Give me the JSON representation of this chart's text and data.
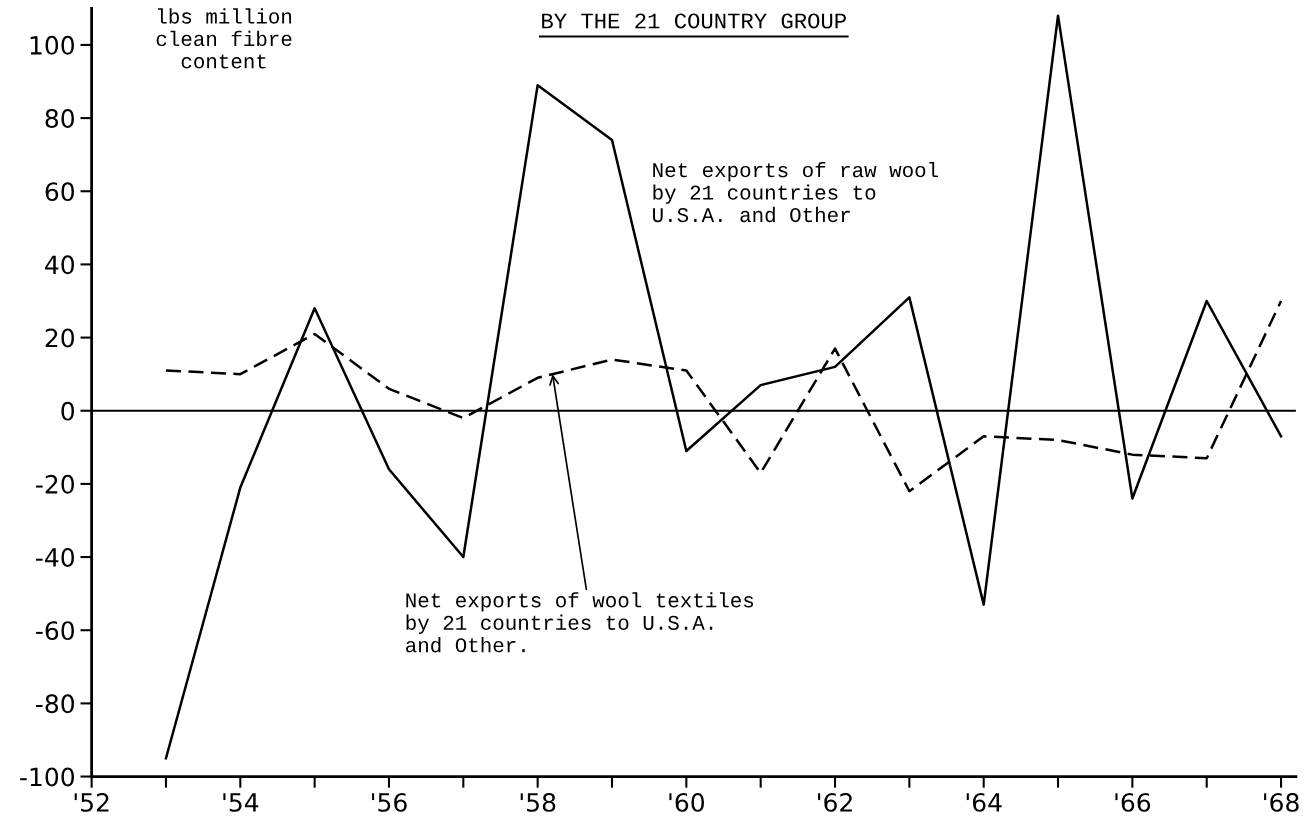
{
  "chart_data": {
    "type": "line",
    "title": "BY THE 21 COUNTRY GROUP",
    "x": [
      1953,
      1954,
      1955,
      1956,
      1957,
      1958,
      1959,
      1960,
      1961,
      1962,
      1963,
      1964,
      1965,
      1966,
      1967,
      1968
    ],
    "series": [
      {
        "name": "Net exports of raw wool\nby 21 countries to\nU.S.A. and Other",
        "color": "#000000",
        "line_style": "solid",
        "values": [
          -95,
          -21,
          28,
          -16,
          -40,
          89,
          74,
          -11,
          7,
          12,
          31,
          -53,
          108,
          -24,
          30,
          -7
        ]
      },
      {
        "name": "Net exports of wool textiles\nby 21 countries to U.S.A.\nand Other.",
        "color": "#000000",
        "line_style": "dashed",
        "values": [
          11,
          10,
          21,
          6,
          -2,
          9,
          14,
          11,
          -17,
          17,
          -22,
          -7,
          -8,
          -12,
          -13,
          30
        ]
      }
    ],
    "annotations": [
      "lbs million\nclean fibre\ncontent"
    ],
    "xlim": [
      1952,
      1968.2
    ],
    "xticks": [
      {
        "value": 1952,
        "label": "'52"
      },
      {
        "value": 1953,
        "label": null
      },
      {
        "value": 1954,
        "label": "'54"
      },
      {
        "value": 1955,
        "label": null
      },
      {
        "value": 1956,
        "label": "'56"
      },
      {
        "value": 1957,
        "label": null
      },
      {
        "value": 1958,
        "label": "'58"
      },
      {
        "value": 1959,
        "label": null
      },
      {
        "value": 1960,
        "label": "'60"
      },
      {
        "value": 1961,
        "label": null
      },
      {
        "value": 1962,
        "label": "'62"
      },
      {
        "value": 1963,
        "label": null
      },
      {
        "value": 1964,
        "label": "'64"
      },
      {
        "value": 1965,
        "label": null
      },
      {
        "value": 1966,
        "label": "'66"
      },
      {
        "value": 1967,
        "label": null
      },
      {
        "value": 1968,
        "label": "'68"
      }
    ],
    "ylim": [
      -100,
      110
    ],
    "yticks": [
      -100,
      -80,
      -60,
      -40,
      -20,
      0,
      20,
      40,
      60,
      80,
      100
    ],
    "ref_lines": [
      {
        "axis": "y",
        "value": 0,
        "color": "#000000"
      }
    ],
    "grid": false,
    "legend": false,
    "marker": "none"
  }
}
